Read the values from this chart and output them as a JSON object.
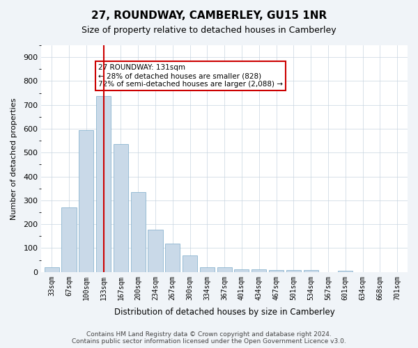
{
  "title": "27, ROUNDWAY, CAMBERLEY, GU15 1NR",
  "subtitle": "Size of property relative to detached houses in Camberley",
  "xlabel": "Distribution of detached houses by size in Camberley",
  "ylabel": "Number of detached properties",
  "bar_color": "#c9d9e8",
  "bar_edge_color": "#7aaac8",
  "categories": [
    "33sqm",
    "67sqm",
    "100sqm",
    "133sqm",
    "167sqm",
    "200sqm",
    "234sqm",
    "267sqm",
    "300sqm",
    "334sqm",
    "367sqm",
    "401sqm",
    "434sqm",
    "467sqm",
    "501sqm",
    "534sqm",
    "567sqm",
    "601sqm",
    "634sqm",
    "668sqm",
    "701sqm"
  ],
  "values": [
    20,
    270,
    595,
    738,
    535,
    335,
    178,
    118,
    68,
    20,
    20,
    10,
    10,
    8,
    8,
    8,
    0,
    5,
    0,
    0,
    0
  ],
  "marker_index": 3,
  "marker_label": "27 ROUNDWAY: 131sqm",
  "marker_line_color": "#cc0000",
  "annotation_text": "27 ROUNDWAY: 131sqm\n← 28% of detached houses are smaller (828)\n72% of semi-detached houses are larger (2,088) →",
  "annotation_box_color": "white",
  "annotation_box_edge_color": "#cc0000",
  "ylim": [
    0,
    950
  ],
  "yticks": [
    0,
    100,
    200,
    300,
    400,
    500,
    600,
    700,
    800,
    900
  ],
  "footer": "Contains HM Land Registry data © Crown copyright and database right 2024.\nContains public sector information licensed under the Open Government Licence v3.0.",
  "bg_color": "#f0f4f8",
  "plot_bg_color": "#ffffff",
  "grid_color": "#c8d4e0"
}
